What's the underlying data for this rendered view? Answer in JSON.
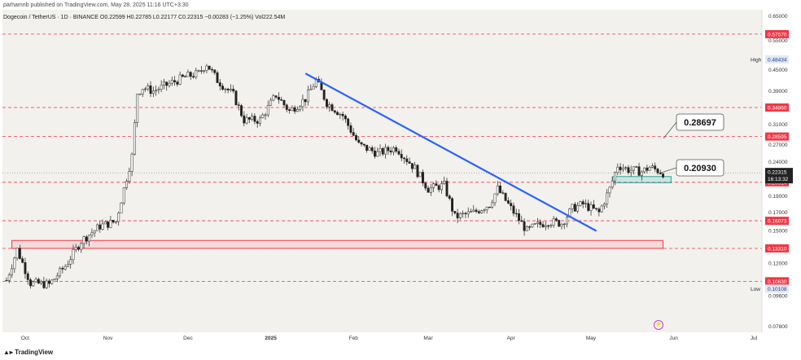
{
  "header": {
    "text": "parhamnb published on TradingView.com, May 28, 2025 11:16 UTC+3:30"
  },
  "legend": {
    "text": "Dogecoin / TetherUS · 1D · BINANCE  O0.22599 H0.22785 L0.22177 C0.22315 −0.00283 (−1.25%)  Vol222.54M"
  },
  "footer": {
    "logo_text": "TradingView"
  },
  "colors": {
    "up": "#222222",
    "down": "#222222",
    "red_line": "#f23645",
    "blue_trend": "#2962ff",
    "green_box": "#26a69a",
    "pane_bg": "#f3f1ee"
  },
  "price_scale": {
    "ticks": [
      "0.65000",
      "0.55000",
      "0.45000",
      "0.39000",
      "0.31000",
      "0.27000",
      "0.24000",
      "0.19000",
      "0.17000",
      "0.15000",
      "0.12000",
      "0.09600",
      "0.07800"
    ],
    "tick_values": [
      0.65,
      0.55,
      0.45,
      0.39,
      0.31,
      0.27,
      0.24,
      0.19,
      0.17,
      0.15,
      0.12,
      0.096,
      0.078
    ]
  },
  "time_axis": {
    "labels": [
      "Oct",
      "Nov",
      "Dec",
      "2025",
      "Feb",
      "Mar",
      "Apr",
      "May",
      "Jun",
      "Jul"
    ]
  },
  "chart_data": {
    "type": "candlestick",
    "title": "Dogecoin / TetherUS · 1D · BINANCE",
    "scale": "log",
    "y_range": [
      0.075,
      0.68
    ],
    "x_start": "2024-09-24",
    "x_labels": [
      {
        "label": "Oct",
        "date": "2024-10-01"
      },
      {
        "label": "Nov",
        "date": "2024-11-01"
      },
      {
        "label": "Dec",
        "date": "2024-12-01"
      },
      {
        "label": "2025",
        "date": "2025-01-01"
      },
      {
        "label": "Feb",
        "date": "2025-02-01"
      },
      {
        "label": "Mar",
        "date": "2025-03-01"
      },
      {
        "label": "Apr",
        "date": "2025-04-01"
      },
      {
        "label": "May",
        "date": "2025-05-01"
      },
      {
        "label": "Jun",
        "date": "2025-06-01"
      },
      {
        "label": "Jul",
        "date": "2025-07-01"
      }
    ],
    "close_path": [
      {
        "date": "2024-09-24",
        "price": 0.107
      },
      {
        "date": "2024-09-28",
        "price": 0.132
      },
      {
        "date": "2024-10-03",
        "price": 0.105
      },
      {
        "date": "2024-10-10",
        "price": 0.104
      },
      {
        "date": "2024-10-16",
        "price": 0.118
      },
      {
        "date": "2024-10-22",
        "price": 0.14
      },
      {
        "date": "2024-10-29",
        "price": 0.155
      },
      {
        "date": "2024-11-04",
        "price": 0.16
      },
      {
        "date": "2024-11-10",
        "price": 0.25
      },
      {
        "date": "2024-11-12",
        "price": 0.385
      },
      {
        "date": "2024-11-14",
        "price": 0.4
      },
      {
        "date": "2024-11-18",
        "price": 0.39
      },
      {
        "date": "2024-11-24",
        "price": 0.41
      },
      {
        "date": "2024-11-30",
        "price": 0.43
      },
      {
        "date": "2024-12-05",
        "price": 0.44
      },
      {
        "date": "2024-12-08",
        "price": 0.47
      },
      {
        "date": "2024-12-12",
        "price": 0.42
      },
      {
        "date": "2024-12-18",
        "price": 0.38
      },
      {
        "date": "2024-12-22",
        "price": 0.32
      },
      {
        "date": "2024-12-28",
        "price": 0.32
      },
      {
        "date": "2025-01-03",
        "price": 0.38
      },
      {
        "date": "2025-01-08",
        "price": 0.34
      },
      {
        "date": "2025-01-14",
        "price": 0.37
      },
      {
        "date": "2025-01-18",
        "price": 0.42
      },
      {
        "date": "2025-01-22",
        "price": 0.36
      },
      {
        "date": "2025-01-28",
        "price": 0.33
      },
      {
        "date": "2025-02-03",
        "price": 0.27
      },
      {
        "date": "2025-02-10",
        "price": 0.255
      },
      {
        "date": "2025-02-17",
        "price": 0.265
      },
      {
        "date": "2025-02-24",
        "price": 0.23
      },
      {
        "date": "2025-03-01",
        "price": 0.2
      },
      {
        "date": "2025-03-07",
        "price": 0.205
      },
      {
        "date": "2025-03-11",
        "price": 0.165
      },
      {
        "date": "2025-03-18",
        "price": 0.17
      },
      {
        "date": "2025-03-24",
        "price": 0.18
      },
      {
        "date": "2025-03-27",
        "price": 0.2
      },
      {
        "date": "2025-04-01",
        "price": 0.175
      },
      {
        "date": "2025-04-07",
        "price": 0.15
      },
      {
        "date": "2025-04-10",
        "price": 0.155
      },
      {
        "date": "2025-04-15",
        "price": 0.16
      },
      {
        "date": "2025-04-20",
        "price": 0.158
      },
      {
        "date": "2025-04-24",
        "price": 0.175
      },
      {
        "date": "2025-04-28",
        "price": 0.18
      },
      {
        "date": "2025-05-04",
        "price": 0.17
      },
      {
        "date": "2025-05-08",
        "price": 0.2
      },
      {
        "date": "2025-05-11",
        "price": 0.235
      },
      {
        "date": "2025-05-15",
        "price": 0.228
      },
      {
        "date": "2025-05-20",
        "price": 0.225
      },
      {
        "date": "2025-05-23",
        "price": 0.232
      },
      {
        "date": "2025-05-28",
        "price": 0.223
      }
    ],
    "horizontal_levels": [
      {
        "price": 0.5757,
        "label": "0.57570"
      },
      {
        "price": 0.3486,
        "label": "0.34860"
      },
      {
        "price": 0.28595,
        "label": "0.28595"
      },
      {
        "price": 0.20914,
        "label": "0.20914"
      },
      {
        "price": 0.16073,
        "label": "0.16073"
      },
      {
        "price": 0.1331,
        "label": "0.13310"
      },
      {
        "price": 0.1063,
        "label": "0.10630"
      }
    ],
    "current_price": {
      "price": 0.22315,
      "label": "0.22315",
      "countdown": "16:13:32"
    },
    "high": {
      "label": "High",
      "price_label": "0.48434",
      "price": 0.48434
    },
    "low": {
      "label": "Low",
      "price_label": "0.10108",
      "price": 0.10108
    },
    "callouts": [
      {
        "text": "0.28697",
        "price": 0.28697
      },
      {
        "text": "0.20930",
        "price": 0.2093
      }
    ],
    "trendline": {
      "start": {
        "date": "2025-01-14",
        "price": 0.44
      },
      "end": {
        "date": "2025-05-03",
        "price": 0.15
      }
    },
    "red_zone": {
      "from": "2024-09-26",
      "to": "2025-05-28",
      "low": 0.1331,
      "high": 0.1405
    },
    "green_zone": {
      "from": "2025-05-09",
      "to": "2025-05-31",
      "low": 0.2085,
      "high": 0.2175
    }
  }
}
